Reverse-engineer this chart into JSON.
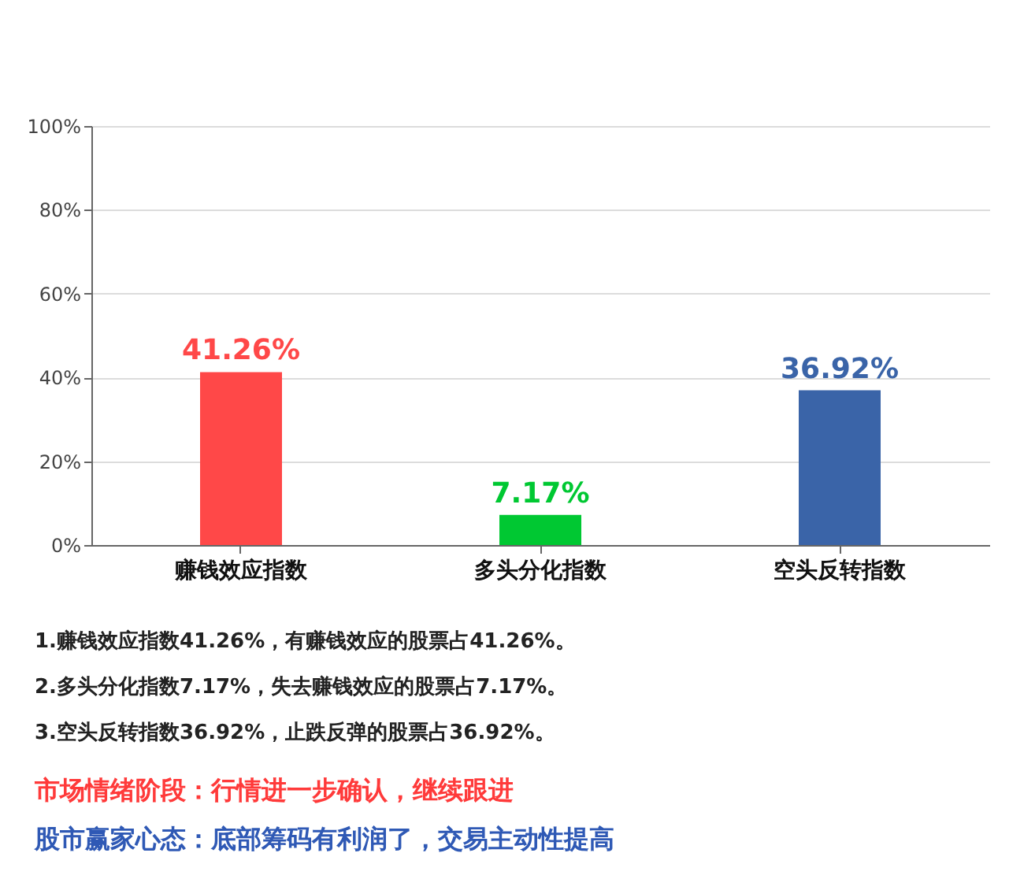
{
  "chart_data": {
    "type": "bar",
    "categories": [
      "赚钱效应指数",
      "多头分化指数",
      "空头反转指数"
    ],
    "values": [
      41.26,
      7.17,
      36.92
    ],
    "colors": [
      "#ff4848",
      "#00c832",
      "#3a64a8"
    ],
    "value_labels": [
      "41.26%",
      "7.17%",
      "36.92%"
    ],
    "ylim": [
      0,
      100
    ],
    "yticks": [
      {
        "value": 0,
        "label": "0%"
      },
      {
        "value": 20,
        "label": "20%"
      },
      {
        "value": 40,
        "label": "40%"
      },
      {
        "value": 60,
        "label": "60%"
      },
      {
        "value": 80,
        "label": "80%"
      },
      {
        "value": 100,
        "label": "100%"
      }
    ],
    "grid": "y",
    "annotations": [
      "1.赚钱效应指数41.26%，有赚钱效应的股票占41.26%。",
      "2.多头分化指数7.17%，失去赚钱效应的股票占7.17%。",
      "3.空头反转指数36.92%，止跌反弹的股票占36.92%。",
      "市场情绪阶段：行情进一步确认，继续跟进",
      "股市赢家心态：底部筹码有利润了，交易主动性提高"
    ]
  }
}
